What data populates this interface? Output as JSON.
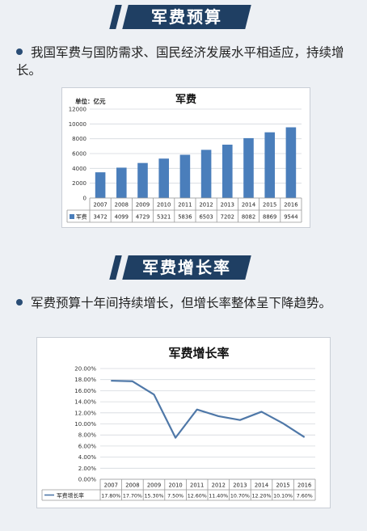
{
  "section1": {
    "banner": "军费预算",
    "bullet_text": "我国军费与国防需求、国民经济发展水平相适应，持续增长。"
  },
  "section2": {
    "banner": "军费增长率",
    "bullet_text": "军费预算十年间持续增长，但增长率整体呈下降趋势。"
  },
  "colors": {
    "banner": "#1f3f63",
    "bar": "#4a7ebb",
    "line": "#4f78a8",
    "bullet": "#2a4d75"
  },
  "chart_data": [
    {
      "type": "bar",
      "title": "军费",
      "unit_label": "单位：亿元",
      "categories": [
        "2007",
        "2008",
        "2009",
        "2010",
        "2011",
        "2012",
        "2013",
        "2014",
        "2015",
        "2016"
      ],
      "series": [
        {
          "name": "军费",
          "values": [
            3472,
            4099,
            4729,
            5321,
            5836,
            6503,
            7202,
            8082,
            8869,
            9544
          ]
        }
      ],
      "value_labels": [
        "3472",
        "4099",
        "4729",
        "5321",
        "5836",
        "6503",
        "7202",
        "8082",
        "8869",
        "9544"
      ],
      "ylim": [
        0,
        12000
      ],
      "yticks": [
        "0",
        "2000",
        "4000",
        "6000",
        "8000",
        "10000",
        "12000"
      ],
      "grid": true,
      "legend": "data-table"
    },
    {
      "type": "line",
      "title": "军费增长率",
      "categories": [
        "2007",
        "2008",
        "2009",
        "2010",
        "2011",
        "2012",
        "2013",
        "2014",
        "2015",
        "2016"
      ],
      "series": [
        {
          "name": "军费增长率",
          "values": [
            17.8,
            17.7,
            15.3,
            7.5,
            12.6,
            11.4,
            10.7,
            12.2,
            10.1,
            7.6
          ]
        }
      ],
      "value_labels": [
        "17.80%",
        "17.70%",
        "15.30%",
        "7.50%",
        "12.60%",
        "11.40%",
        "10.70%",
        "12.20%",
        "10.10%",
        "7.60%"
      ],
      "ylim": [
        0,
        20
      ],
      "yticks": [
        "0.00%",
        "2.00%",
        "4.00%",
        "6.00%",
        "8.00%",
        "10.00%",
        "12.00%",
        "14.00%",
        "16.00%",
        "18.00%",
        "20.00%"
      ],
      "grid": true,
      "legend": "data-table"
    }
  ]
}
